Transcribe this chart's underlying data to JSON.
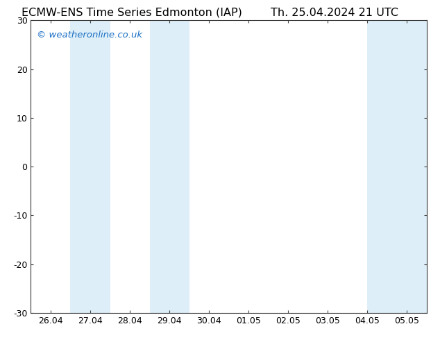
{
  "title_left": "ECMW-ENS Time Series Edmonton (IAP)",
  "title_right": "Th. 25.04.2024 21 UTC",
  "watermark": "© weatheronline.co.uk",
  "watermark_color": "#1a6fc4",
  "xlim_left": -0.5,
  "xlim_right": 9.5,
  "ylim_bottom": -30,
  "ylim_top": 30,
  "yticks": [
    -30,
    -20,
    -10,
    0,
    10,
    20,
    30
  ],
  "xtick_labels": [
    "26.04",
    "27.04",
    "28.04",
    "29.04",
    "30.04",
    "01.05",
    "02.05",
    "03.05",
    "04.05",
    "05.05"
  ],
  "background_color": "#ffffff",
  "plot_bg_color": "#ffffff",
  "shaded_color": "#ddeef8",
  "shaded_bands": [
    [
      0.5,
      1.5
    ],
    [
      2.5,
      3.5
    ],
    [
      8.0,
      9.0
    ],
    [
      9.0,
      9.5
    ]
  ],
  "title_fontsize": 11.5,
  "watermark_fontsize": 9.5,
  "tick_fontsize": 9
}
